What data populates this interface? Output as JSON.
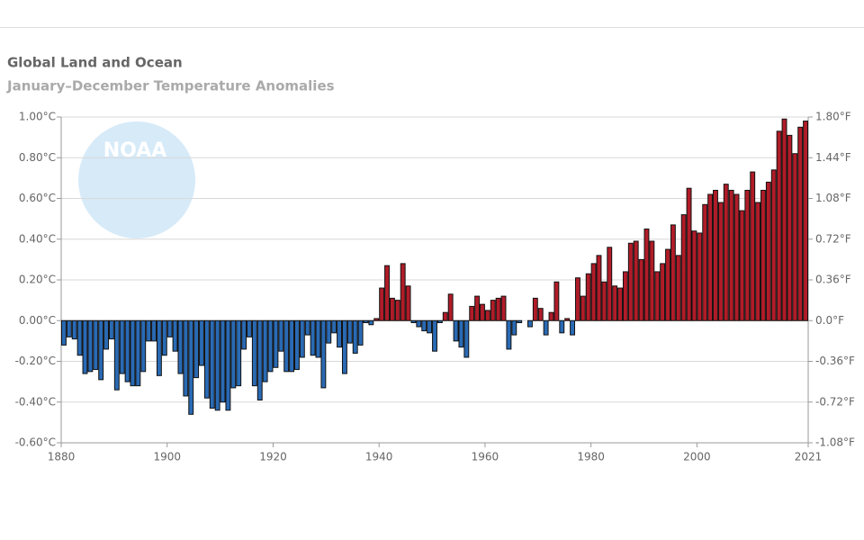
{
  "chart_data": {
    "type": "bar",
    "title": "Global Land and Ocean",
    "subtitle": "January–December Temperature Anomalies",
    "logo": "NOAA",
    "positive_color": "#b01c28",
    "negative_color": "#2a6ab4",
    "grid": true,
    "x": [
      1880,
      1881,
      1882,
      1883,
      1884,
      1885,
      1886,
      1887,
      1888,
      1889,
      1890,
      1891,
      1892,
      1893,
      1894,
      1895,
      1896,
      1897,
      1898,
      1899,
      1900,
      1901,
      1902,
      1903,
      1904,
      1905,
      1906,
      1907,
      1908,
      1909,
      1910,
      1911,
      1912,
      1913,
      1914,
      1915,
      1916,
      1917,
      1918,
      1919,
      1920,
      1921,
      1922,
      1923,
      1924,
      1925,
      1926,
      1927,
      1928,
      1929,
      1930,
      1931,
      1932,
      1933,
      1934,
      1935,
      1936,
      1937,
      1938,
      1939,
      1940,
      1941,
      1942,
      1943,
      1944,
      1945,
      1946,
      1947,
      1948,
      1949,
      1950,
      1951,
      1952,
      1953,
      1954,
      1955,
      1956,
      1957,
      1958,
      1959,
      1960,
      1961,
      1962,
      1963,
      1964,
      1965,
      1966,
      1967,
      1968,
      1969,
      1970,
      1971,
      1972,
      1973,
      1974,
      1975,
      1976,
      1977,
      1978,
      1979,
      1980,
      1981,
      1982,
      1983,
      1984,
      1985,
      1986,
      1987,
      1988,
      1989,
      1990,
      1991,
      1992,
      1993,
      1994,
      1995,
      1996,
      1997,
      1998,
      1999,
      2000,
      2001,
      2002,
      2003,
      2004,
      2005,
      2006,
      2007,
      2008,
      2009,
      2010,
      2011,
      2012,
      2013,
      2014,
      2015,
      2016,
      2017,
      2018,
      2019,
      2020
    ],
    "values": [
      -0.12,
      -0.08,
      -0.09,
      -0.17,
      -0.26,
      -0.25,
      -0.24,
      -0.29,
      -0.14,
      -0.09,
      -0.34,
      -0.26,
      -0.3,
      -0.32,
      -0.32,
      -0.25,
      -0.1,
      -0.1,
      -0.27,
      -0.17,
      -0.08,
      -0.15,
      -0.26,
      -0.37,
      -0.46,
      -0.28,
      -0.22,
      -0.38,
      -0.43,
      -0.44,
      -0.4,
      -0.44,
      -0.33,
      -0.32,
      -0.14,
      -0.08,
      -0.32,
      -0.39,
      -0.3,
      -0.25,
      -0.23,
      -0.15,
      -0.25,
      -0.25,
      -0.24,
      -0.18,
      -0.07,
      -0.17,
      -0.18,
      -0.33,
      -0.11,
      -0.06,
      -0.13,
      -0.26,
      -0.11,
      -0.16,
      -0.12,
      -0.01,
      -0.02,
      0.01,
      0.16,
      0.27,
      0.11,
      0.1,
      0.28,
      0.17,
      -0.01,
      -0.03,
      -0.05,
      -0.06,
      -0.15,
      -0.01,
      0.04,
      0.13,
      -0.1,
      -0.13,
      -0.18,
      0.07,
      0.12,
      0.08,
      0.05,
      0.1,
      0.11,
      0.12,
      -0.14,
      -0.07,
      -0.01,
      0.0,
      -0.03,
      0.11,
      0.06,
      -0.07,
      0.04,
      0.19,
      -0.06,
      0.01,
      -0.07,
      0.21,
      0.12,
      0.23,
      0.28,
      0.32,
      0.19,
      0.36,
      0.17,
      0.16,
      0.24,
      0.38,
      0.39,
      0.3,
      0.45,
      0.39,
      0.24,
      0.28,
      0.35,
      0.47,
      0.32,
      0.52,
      0.65,
      0.44,
      0.43,
      0.57,
      0.62,
      0.64,
      0.58,
      0.67,
      0.64,
      0.62,
      0.54,
      0.64,
      0.73,
      0.58,
      0.64,
      0.68,
      0.74,
      0.93,
      0.99,
      0.91,
      0.82,
      0.95,
      0.98
    ],
    "xlim": [
      1880,
      2021
    ],
    "xticks": [
      1880,
      1900,
      1920,
      1940,
      1960,
      1980,
      2000,
      2021
    ],
    "ylim": [
      -0.6,
      1.0
    ],
    "yticks": [
      {
        "value": -0.6,
        "label": "-0.60°C"
      },
      {
        "value": -0.4,
        "label": "-0.40°C"
      },
      {
        "value": -0.2,
        "label": "-0.20°C"
      },
      {
        "value": 0,
        "label": "0.00°C"
      },
      {
        "value": 0.2,
        "label": "0.20°C"
      },
      {
        "value": 0.4,
        "label": "0.40°C"
      },
      {
        "value": 0.6,
        "label": "0.60°C"
      },
      {
        "value": 0.8,
        "label": "0.80°C"
      },
      {
        "value": 1.0,
        "label": "1.00°C"
      }
    ],
    "y2lim": [
      -1.08,
      1.8
    ],
    "y2ticks": [
      {
        "value": -1.08,
        "label": "-1.08°F"
      },
      {
        "value": -0.72,
        "label": "-0.72°F"
      },
      {
        "value": -0.36,
        "label": "-0.36°F"
      },
      {
        "value": 0,
        "label": "0.0°F"
      },
      {
        "value": 0.36,
        "label": "0.36°F"
      },
      {
        "value": 0.72,
        "label": "0.72°F"
      },
      {
        "value": 1.08,
        "label": "1.08°F"
      },
      {
        "value": 1.44,
        "label": "1.44°F"
      },
      {
        "value": 1.8,
        "label": "1.80°F"
      }
    ]
  }
}
